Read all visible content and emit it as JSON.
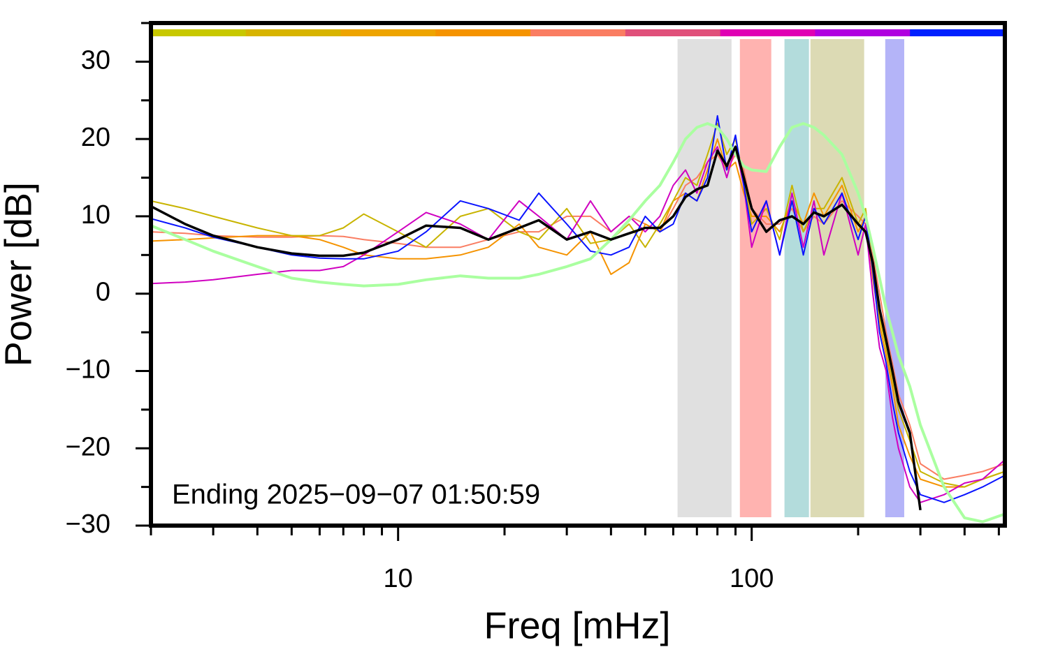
{
  "chart_data": {
    "type": "line",
    "xlabel": "Freq [mHz]",
    "ylabel": "Power [dB]",
    "annotation": "Ending 2025−09−07 01:50:59",
    "xscale": "log",
    "xlim": [
      2,
      520
    ],
    "ylim": [
      -30,
      35
    ],
    "xticks": [
      10,
      100
    ],
    "xminorticks": [
      2,
      3,
      4,
      5,
      6,
      7,
      8,
      9,
      20,
      30,
      40,
      50,
      60,
      70,
      80,
      90,
      200,
      300,
      400,
      500
    ],
    "yticks": [
      {
        "value": -30,
        "label": "−30"
      },
      {
        "value": -20,
        "label": "−20"
      },
      {
        "value": -10,
        "label": "−10"
      },
      0,
      10,
      20,
      30
    ],
    "yminorticks": [
      -25,
      -15,
      -5,
      5,
      15,
      25,
      35
    ],
    "color_bar": [
      "#c8c800",
      "#d8b400",
      "#eea400",
      "#f59300",
      "#fa7d62",
      "#e0507a",
      "#e000b4",
      "#b000e0",
      "#0020ff"
    ],
    "bands": [
      {
        "from": 61.7,
        "to": 87.7,
        "color": "#e0e0e0"
      },
      {
        "from": 92.6,
        "to": 113.6,
        "color": "#ffb3b0"
      },
      {
        "from": 123.8,
        "to": 145.2,
        "color": "#b3dcdc"
      },
      {
        "from": 146.6,
        "to": 208,
        "color": "#dcdab4"
      },
      {
        "from": 238.6,
        "to": 270,
        "color": "#b4b4f8"
      }
    ],
    "x": [
      2,
      2.5,
      3,
      4,
      5,
      6,
      7,
      8,
      10,
      12,
      15,
      18,
      22,
      25,
      30,
      35,
      40,
      45,
      50,
      55,
      60,
      65,
      70,
      75,
      80,
      85,
      90,
      95,
      100,
      110,
      120,
      130,
      140,
      150,
      160,
      180,
      200,
      210,
      220,
      230,
      240,
      250,
      260,
      280,
      300,
      350,
      400,
      450,
      520
    ],
    "series": [
      {
        "color": "#fa7d62",
        "width": 2,
        "values": [
          8,
          7.8,
          7.5,
          7.3,
          7.3,
          7.5,
          7.4,
          7,
          6.5,
          6,
          6,
          7,
          8,
          8,
          10,
          10,
          8,
          10,
          9,
          8,
          11,
          14,
          15,
          17,
          18,
          16,
          18,
          16,
          11,
          9,
          9,
          11,
          8,
          10,
          9,
          12,
          10,
          9,
          5,
          0,
          -5,
          -9,
          -13,
          -17,
          -22,
          -24,
          -23.5,
          -23,
          -22
        ]
      },
      {
        "color": "#f59300",
        "width": 2,
        "values": [
          6.8,
          7,
          7.2,
          7.5,
          7.5,
          7,
          6,
          5,
          4.5,
          4.5,
          5,
          6,
          9,
          6,
          5,
          8,
          2.5,
          4,
          9,
          8,
          12,
          13,
          12,
          16,
          20,
          16,
          17,
          13,
          10,
          10,
          8,
          12,
          9,
          13,
          10,
          14,
          8,
          10,
          2,
          -4,
          -8,
          -12,
          -17,
          -21,
          -24,
          -25,
          -25,
          -24,
          -23
        ]
      },
      {
        "color": "#c8b400",
        "width": 2,
        "values": [
          12,
          11,
          10,
          8.5,
          7.5,
          7.5,
          8.5,
          10.3,
          8,
          6,
          10,
          11,
          8,
          7,
          11,
          6.5,
          7,
          9,
          6,
          9,
          12,
          15,
          14,
          18,
          22,
          18,
          20,
          15,
          9,
          11,
          7,
          14,
          8,
          11,
          11,
          15,
          9,
          11,
          3,
          -3,
          -7,
          -11,
          -15,
          -19,
          -23,
          -24.5,
          -25,
          -24,
          -23
        ]
      },
      {
        "color": "#d000c0",
        "width": 2,
        "values": [
          1.3,
          1.5,
          1.8,
          2.5,
          3,
          3,
          3.5,
          5,
          8,
          10.5,
          9,
          7,
          12,
          10,
          7,
          12,
          8,
          10,
          8,
          10,
          14,
          16,
          13,
          17,
          19,
          15,
          19,
          14,
          6,
          12,
          5,
          13,
          6,
          12,
          5,
          13,
          5,
          9,
          0,
          -7,
          -10,
          -16,
          -20,
          -25,
          -27,
          -26,
          -24.5,
          -24,
          -21.5
        ]
      },
      {
        "color": "#0a14ff",
        "width": 2,
        "values": [
          9.7,
          8.5,
          7.3,
          6,
          5,
          4.6,
          4.5,
          4.5,
          5.5,
          8,
          12,
          11,
          9.5,
          13,
          9,
          5.5,
          5,
          6,
          10,
          8,
          9,
          13,
          12,
          15,
          23,
          16,
          20.5,
          14,
          8,
          12,
          5,
          12,
          5,
          11,
          9,
          13,
          7,
          10,
          3,
          -5,
          -9,
          -14,
          -18,
          -23,
          -26,
          -27,
          -26,
          -25,
          -23.5
        ]
      },
      {
        "color": "#aaffa0",
        "width": 4,
        "values": [
          8.8,
          7,
          5.5,
          3.5,
          2,
          1.5,
          1.2,
          1,
          1.2,
          1.8,
          2.3,
          2,
          2,
          2.5,
          3.5,
          4.5,
          7,
          9.5,
          12,
          14,
          17,
          20,
          21.5,
          22,
          21.5,
          20,
          18,
          16.5,
          16,
          15.8,
          19,
          21.5,
          22,
          21.5,
          20.5,
          18,
          13,
          10,
          6,
          2,
          -2,
          -5,
          -8,
          -12,
          -17,
          -25,
          -29,
          -29.5,
          -28.5
        ]
      },
      {
        "color": "#000000",
        "width": 3.5,
        "values": [
          11.3,
          9,
          7.5,
          6,
          5.2,
          4.9,
          4.9,
          5.3,
          7,
          8.8,
          8.5,
          7,
          8.5,
          9.5,
          7,
          8,
          7,
          7.8,
          8.5,
          8.5,
          10,
          12.5,
          13.5,
          14,
          18.5,
          16.5,
          19,
          15,
          11,
          8,
          9.5,
          10,
          9,
          10.5,
          10,
          11.5,
          9,
          8,
          4,
          -2,
          -6,
          -10,
          -14,
          -18,
          -28,
          null,
          null,
          null,
          null
        ]
      }
    ]
  }
}
